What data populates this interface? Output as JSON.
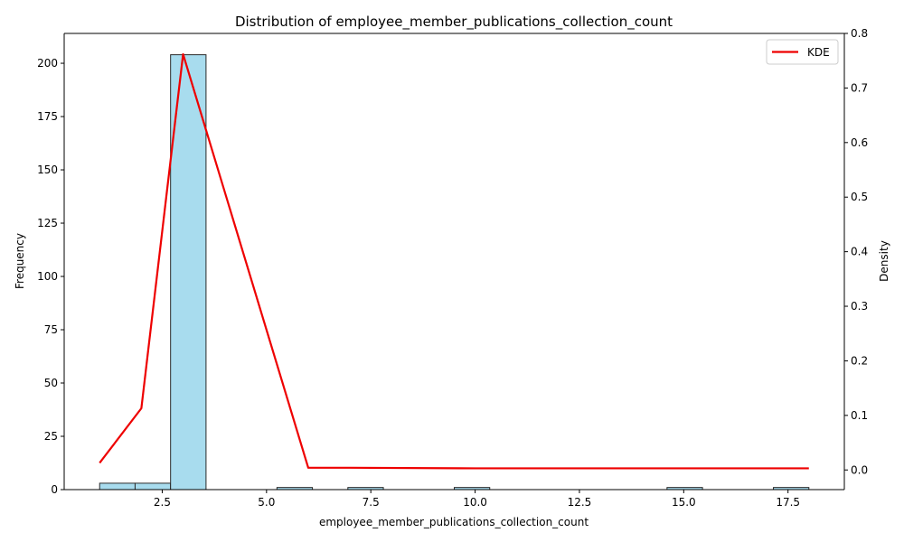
{
  "chart_data": {
    "type": "bar",
    "title": "Distribution of employee_member_publications_collection_count",
    "xlabel": "employee_member_publications_collection_count",
    "ylabel": "Frequency",
    "y2label": "Density",
    "xlim": [
      0.15,
      18.85
    ],
    "ylim": [
      0,
      214
    ],
    "y2lim": [
      -0.036,
      0.8
    ],
    "x_ticks": [
      "2.5",
      "5.0",
      "7.5",
      "10.0",
      "12.5",
      "15.0",
      "17.5"
    ],
    "y_ticks": [
      "0",
      "25",
      "50",
      "75",
      "100",
      "125",
      "150",
      "175",
      "200"
    ],
    "y2_ticks": [
      "0.0",
      "0.1",
      "0.2",
      "0.3",
      "0.4",
      "0.5",
      "0.6",
      "0.7",
      "0.8"
    ],
    "bins": [
      {
        "x0": 1.0,
        "x1": 1.85,
        "count": 3
      },
      {
        "x0": 1.85,
        "x1": 2.7,
        "count": 3
      },
      {
        "x0": 2.7,
        "x1": 3.55,
        "count": 204
      },
      {
        "x0": 5.25,
        "x1": 6.1,
        "count": 1
      },
      {
        "x0": 6.95,
        "x1": 7.8,
        "count": 1
      },
      {
        "x0": 9.5,
        "x1": 10.35,
        "count": 1
      },
      {
        "x0": 14.6,
        "x1": 15.45,
        "count": 1
      },
      {
        "x0": 17.15,
        "x1": 18.0,
        "count": 1
      }
    ],
    "series": [
      {
        "name": "KDE",
        "type": "line",
        "axis": "y2",
        "x": [
          1,
          2,
          3,
          6,
          7,
          10,
          15,
          18
        ],
        "values": [
          0.013,
          0.113,
          0.762,
          0.004,
          0.004,
          0.003,
          0.003,
          0.003
        ]
      }
    ],
    "legend": {
      "position": "top-right",
      "entries": [
        "KDE"
      ]
    },
    "colors": {
      "bar_fill": "#a8dcee",
      "bar_edge": "#2a2a2a",
      "kde_line": "#ee0000",
      "axis": "#000000"
    },
    "grid": false
  }
}
